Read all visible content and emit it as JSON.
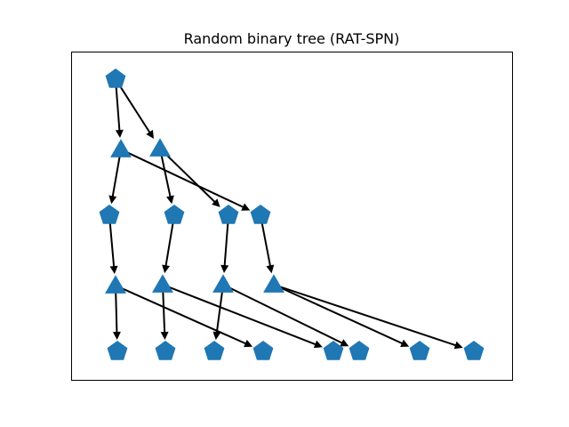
{
  "title": "Random binary tree (RAT-SPN)",
  "colors": {
    "node_fill": "#1f77b4",
    "edge": "#000000",
    "frame": "#000000",
    "background": "#ffffff"
  },
  "node_shapes": {
    "leaf_or_input": "pentagon-icon",
    "product_or_partition": "triangle-icon"
  },
  "nodes": [
    {
      "id": "r",
      "shape": "pentagon"
    },
    {
      "id": "t1",
      "shape": "triangle"
    },
    {
      "id": "t2",
      "shape": "triangle"
    },
    {
      "id": "p1",
      "shape": "pentagon"
    },
    {
      "id": "p2",
      "shape": "pentagon"
    },
    {
      "id": "p3",
      "shape": "pentagon"
    },
    {
      "id": "p4",
      "shape": "pentagon"
    },
    {
      "id": "q1",
      "shape": "triangle"
    },
    {
      "id": "q2",
      "shape": "triangle"
    },
    {
      "id": "q3",
      "shape": "triangle"
    },
    {
      "id": "q4",
      "shape": "triangle"
    },
    {
      "id": "l1",
      "shape": "pentagon"
    },
    {
      "id": "l2",
      "shape": "pentagon"
    },
    {
      "id": "l3",
      "shape": "pentagon"
    },
    {
      "id": "l4",
      "shape": "pentagon"
    },
    {
      "id": "l5",
      "shape": "pentagon"
    },
    {
      "id": "l6",
      "shape": "pentagon"
    },
    {
      "id": "l7",
      "shape": "pentagon"
    },
    {
      "id": "l8",
      "shape": "pentagon"
    }
  ],
  "edges": [
    [
      "r",
      "t1"
    ],
    [
      "r",
      "t2"
    ],
    [
      "t1",
      "p1"
    ],
    [
      "t1",
      "p4"
    ],
    [
      "t2",
      "p2"
    ],
    [
      "t2",
      "p3"
    ],
    [
      "p1",
      "q1"
    ],
    [
      "p2",
      "q2"
    ],
    [
      "p3",
      "q3"
    ],
    [
      "p4",
      "q4"
    ],
    [
      "q1",
      "l1"
    ],
    [
      "q1",
      "l4"
    ],
    [
      "q2",
      "l2"
    ],
    [
      "q2",
      "l5"
    ],
    [
      "q3",
      "l3"
    ],
    [
      "q3",
      "l6"
    ],
    [
      "q4",
      "l7"
    ],
    [
      "q4",
      "l8"
    ]
  ]
}
